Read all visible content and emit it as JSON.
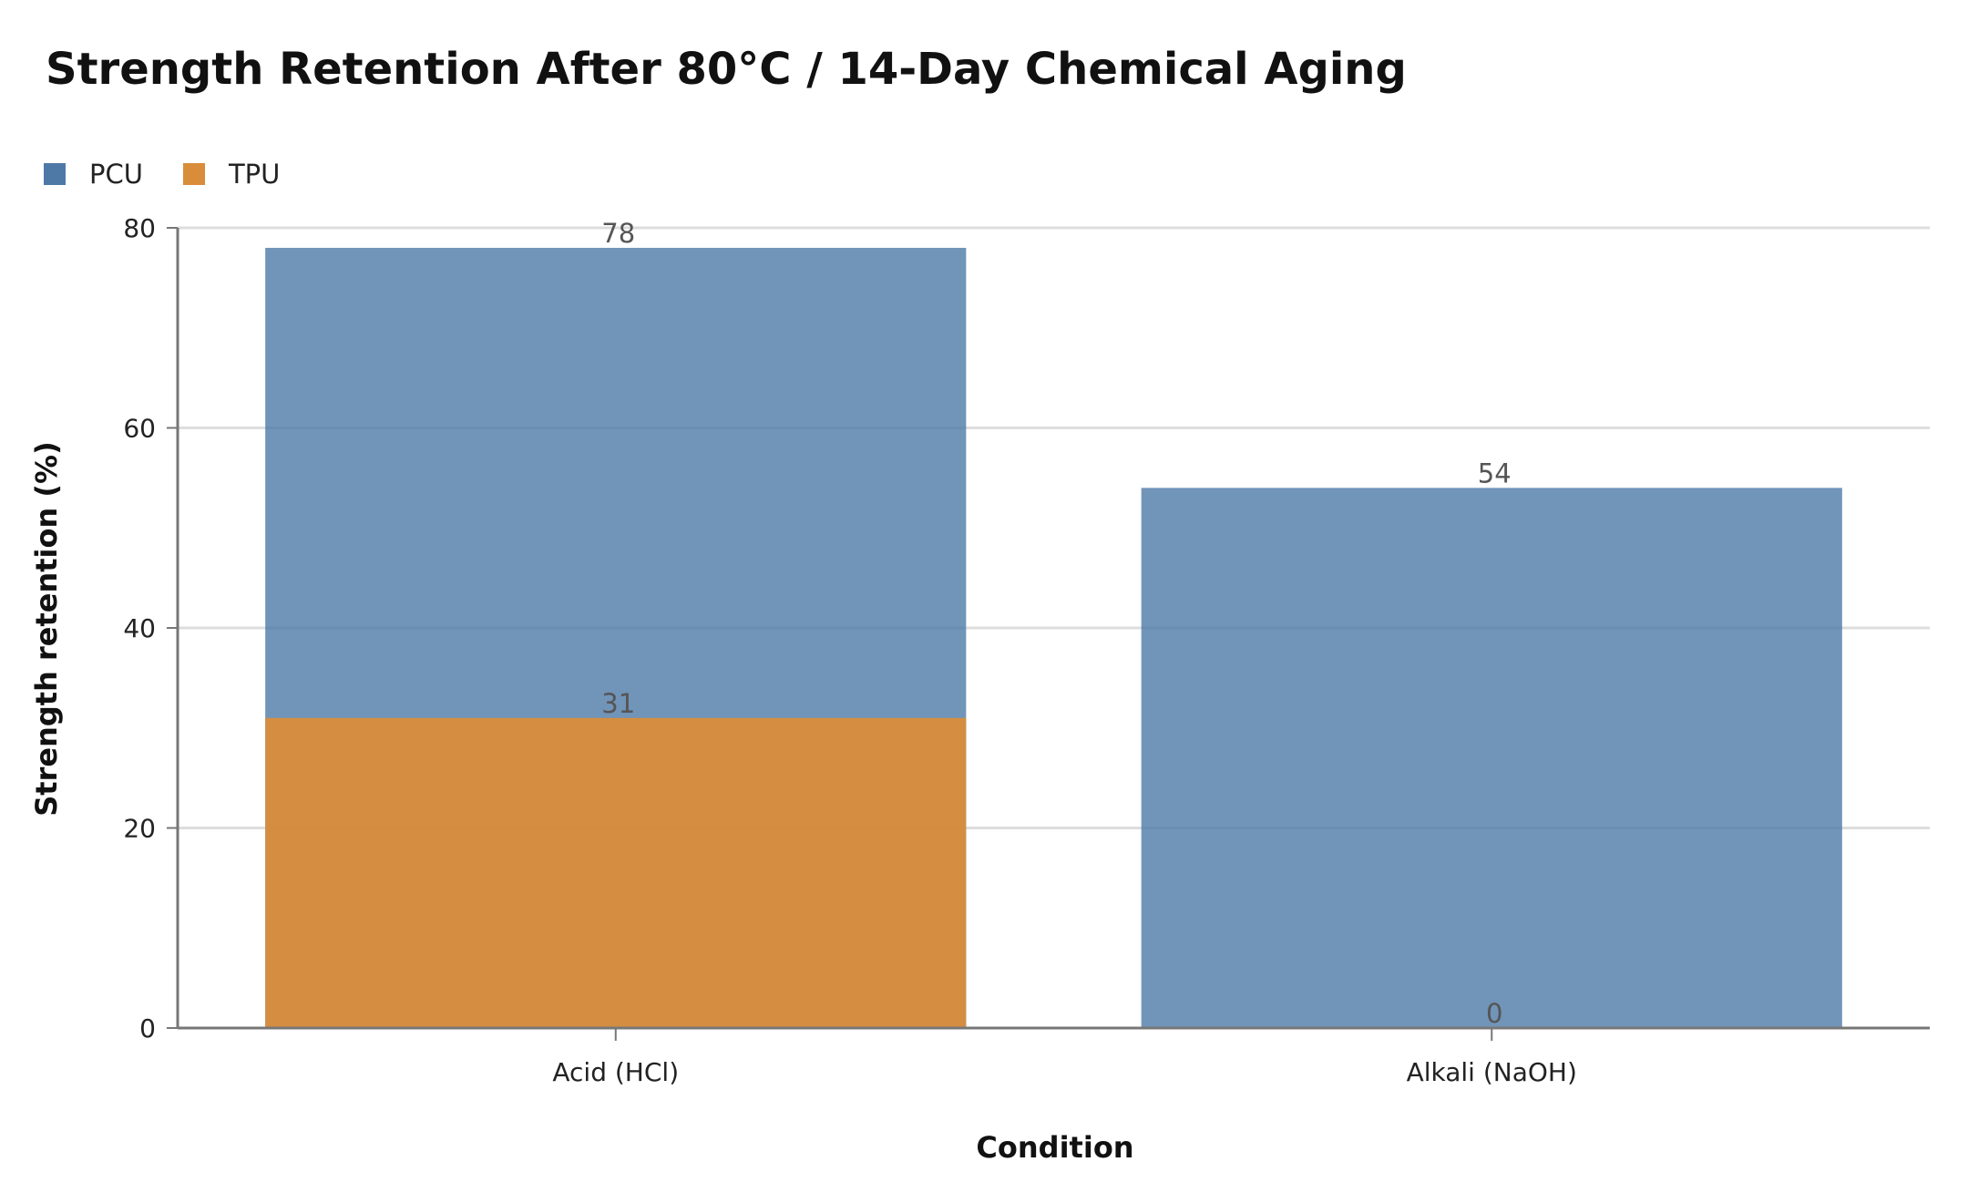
{
  "chart_data": {
    "type": "bar",
    "title": "Strength Retention After 80°C / 14-Day Chemical Aging",
    "xlabel": "Condition",
    "ylabel": "Strength retention (%)",
    "categories": [
      "Acid (HCl)",
      "Alkali (NaOH)"
    ],
    "series": [
      {
        "name": "PCU",
        "values": [
          78,
          54
        ],
        "color": "#4e79a7"
      },
      {
        "name": "TPU",
        "values": [
          31,
          0
        ],
        "color": "#d98c3a"
      }
    ],
    "ylim": [
      0,
      80
    ],
    "yticks": [
      0,
      20,
      40,
      60,
      80
    ],
    "grid": true,
    "legend_position": "top-left",
    "bar_mode": "overlay"
  }
}
